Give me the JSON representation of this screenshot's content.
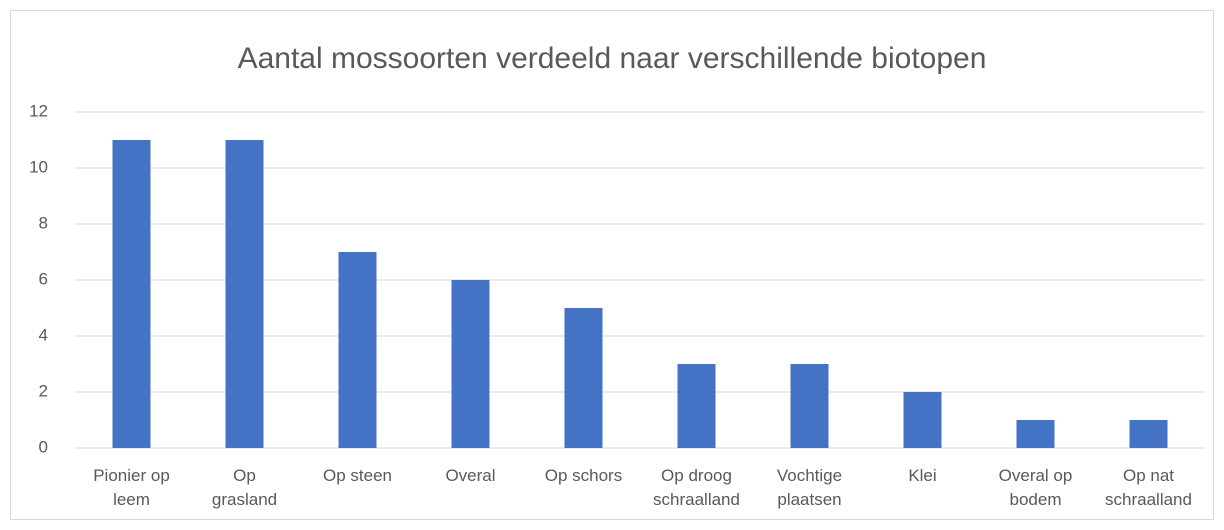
{
  "chart_data": {
    "type": "bar",
    "title": "Aantal mossoorten verdeeld naar verschillende biotopen",
    "categories": [
      "Pionier op leem",
      "Op grasland",
      "Op steen",
      "Overal",
      "Op schors",
      "Op droog schraalland",
      "Vochtige plaatsen",
      "Klei",
      "Overal op bodem",
      "Op nat schraalland"
    ],
    "values": [
      11,
      11,
      7,
      6,
      5,
      3,
      3,
      2,
      1,
      1
    ],
    "color": "#4472c4",
    "ylim": [
      0,
      12
    ],
    "yticks": [
      0,
      2,
      4,
      6,
      8,
      10,
      12
    ],
    "grid": true
  }
}
